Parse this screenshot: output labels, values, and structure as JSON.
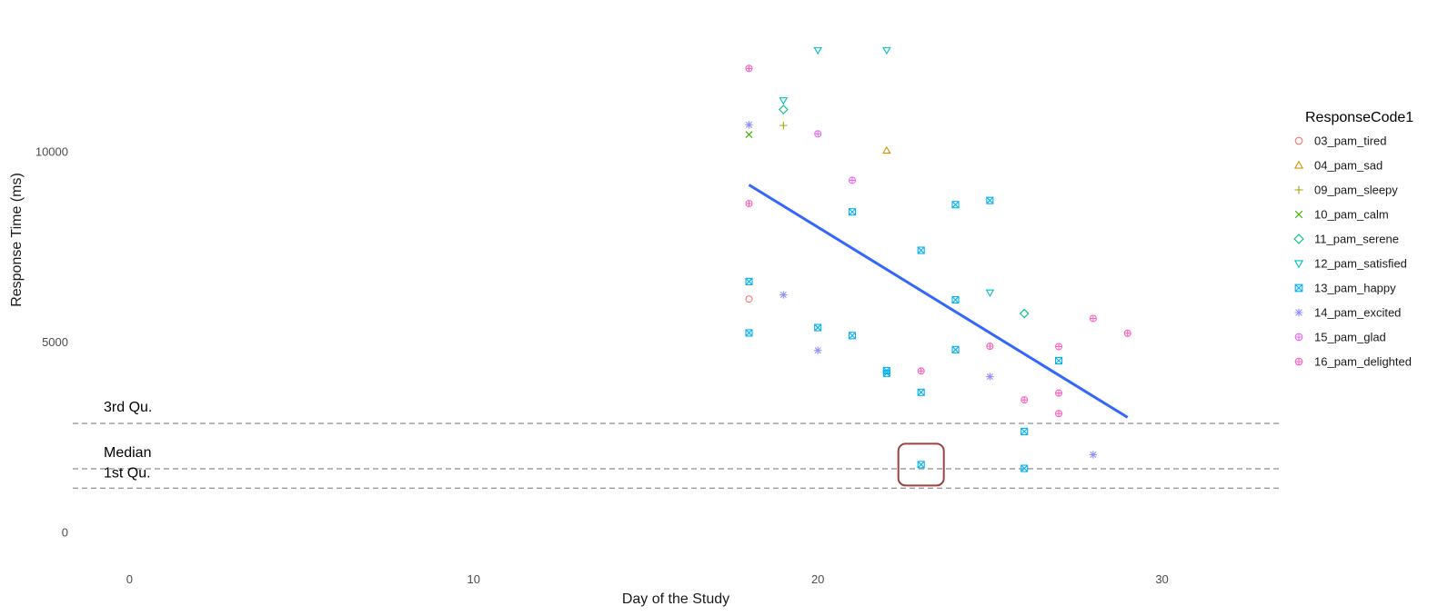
{
  "chart_data": {
    "type": "scatter",
    "xlabel": "Day of the Study",
    "ylabel": "Response Time (ms)",
    "xlim": [
      -1.2,
      33.5
    ],
    "ylim": [
      -800,
      13500
    ],
    "x_ticks": [
      0,
      10,
      20,
      30
    ],
    "y_ticks": [
      0,
      5000,
      10000
    ],
    "grid": false,
    "legend": {
      "title": "ResponseCode1",
      "position": "right"
    },
    "series": [
      {
        "name": "03_pam_tired",
        "color": "#F8766D",
        "shape": "circle",
        "points": [
          [
            18,
            6120
          ]
        ]
      },
      {
        "name": "04_pam_sad",
        "color": "#D89000",
        "shape": "triangle-up",
        "points": [
          [
            22,
            10020
          ]
        ]
      },
      {
        "name": "09_pam_sleepy",
        "color": "#A3A500",
        "shape": "plus",
        "points": [
          [
            19,
            10680
          ]
        ]
      },
      {
        "name": "10_pam_calm",
        "color": "#39B600",
        "shape": "cross",
        "points": [
          [
            18,
            10440
          ]
        ]
      },
      {
        "name": "11_pam_serene",
        "color": "#00BF7D",
        "shape": "diamond",
        "points": [
          [
            19,
            11100
          ],
          [
            26,
            5740
          ]
        ]
      },
      {
        "name": "12_pam_satisfied",
        "color": "#00BFC4",
        "shape": "triangle-down",
        "points": [
          [
            19,
            11340
          ],
          [
            20,
            12660
          ],
          [
            22,
            12660
          ],
          [
            25,
            6290
          ]
        ]
      },
      {
        "name": "13_pam_happy",
        "color": "#00B0F6",
        "shape": "square-cross",
        "points": [
          [
            18,
            6580
          ],
          [
            18,
            5230
          ],
          [
            20,
            5370
          ],
          [
            21,
            8410
          ],
          [
            21,
            5160
          ],
          [
            22,
            4240
          ],
          [
            22,
            4170
          ],
          [
            23,
            7400
          ],
          [
            23,
            3670
          ],
          [
            23,
            1770
          ],
          [
            24,
            8600
          ],
          [
            24,
            6100
          ],
          [
            24,
            4790
          ],
          [
            25,
            8710
          ],
          [
            26,
            2640
          ],
          [
            26,
            1670
          ],
          [
            27,
            4500
          ]
        ]
      },
      {
        "name": "14_pam_excited",
        "color": "#9590FF",
        "shape": "asterisk",
        "points": [
          [
            18,
            10700
          ],
          [
            19,
            6230
          ],
          [
            20,
            4770
          ],
          [
            25,
            4080
          ],
          [
            28,
            2030
          ]
        ]
      },
      {
        "name": "15_pam_glad",
        "color": "#E76BF3",
        "shape": "circle-plus",
        "points": [
          [
            20,
            10460
          ],
          [
            21,
            9240
          ]
        ]
      },
      {
        "name": "16_pam_delighted",
        "color": "#FF62BC",
        "shape": "circle-plus",
        "points": [
          [
            18,
            12180
          ],
          [
            18,
            8630
          ],
          [
            23,
            4230
          ],
          [
            25,
            4880
          ],
          [
            26,
            3470
          ],
          [
            27,
            4870
          ],
          [
            27,
            3650
          ],
          [
            27,
            3110
          ],
          [
            28,
            5610
          ],
          [
            29,
            5220
          ]
        ]
      }
    ],
    "trend_line": {
      "color": "#3366FF",
      "x": [
        18,
        29
      ],
      "y": [
        9120,
        3010
      ]
    },
    "reference_lines": [
      {
        "label": "3rd Qu.",
        "y": 2850
      },
      {
        "label": "Median",
        "y": 1660
      },
      {
        "label": "1st Qu.",
        "y": 1150
      }
    ],
    "highlight": {
      "x": 23,
      "y": 1770,
      "color": "#A04040"
    }
  }
}
